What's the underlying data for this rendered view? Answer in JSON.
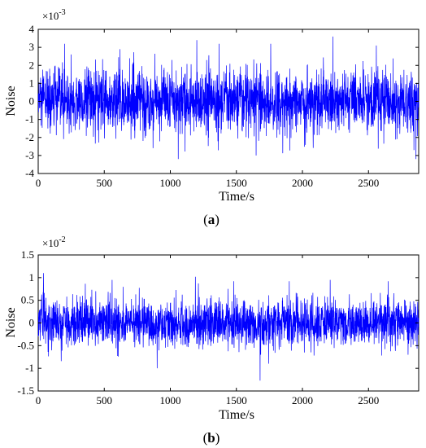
{
  "chart_data": [
    {
      "type": "line",
      "panel": "a",
      "caption_letter": "a",
      "xlabel": "Time/s",
      "ylabel": "Noise",
      "multiplier": "×10",
      "multiplier_exp": "-3",
      "xlim": [
        0,
        2880
      ],
      "ylim": [
        -4,
        4
      ],
      "xticks": [
        0,
        500,
        1000,
        1500,
        2000,
        2500
      ],
      "yticks": [
        4,
        3,
        2,
        1,
        0,
        -1,
        -2,
        -3,
        -4
      ],
      "ytick_labels": [
        "4",
        "3",
        "2",
        "1",
        "0",
        "-1",
        "-2",
        "-3",
        "-4"
      ],
      "grid": false,
      "color": "#0000ff",
      "sigma": 0.9,
      "peaks": [
        [
          200,
          3.2
        ],
        [
          620,
          2.9
        ],
        [
          1060,
          -3.2
        ],
        [
          1200,
          3.4
        ],
        [
          1370,
          3.2
        ],
        [
          1650,
          -3.0
        ],
        [
          1760,
          3.2
        ],
        [
          2230,
          3.6
        ],
        [
          2560,
          3.1
        ],
        [
          2860,
          -3.2
        ]
      ]
    },
    {
      "type": "line",
      "panel": "b",
      "caption_letter": "b",
      "xlabel": "Time/s",
      "ylabel": "Noise",
      "multiplier": "×10",
      "multiplier_exp": "-2",
      "xlim": [
        0,
        2880
      ],
      "ylim": [
        -1.5,
        1.5
      ],
      "xticks": [
        0,
        500,
        1000,
        1500,
        2000,
        2500
      ],
      "yticks": [
        1.5,
        1,
        0.5,
        0,
        -0.5,
        -1,
        -1.5
      ],
      "ytick_labels": [
        "1.5",
        "1",
        "0.5",
        "0",
        "-0.5",
        "-1",
        "-1.5"
      ],
      "grid": false,
      "color": "#0000ff",
      "sigma": 0.26,
      "peaks": [
        [
          40,
          1.1
        ],
        [
          560,
          0.95
        ],
        [
          900,
          -1.0
        ],
        [
          1190,
          1.02
        ],
        [
          1480,
          0.92
        ],
        [
          1680,
          -1.27
        ],
        [
          1900,
          0.92
        ],
        [
          2210,
          0.95
        ],
        [
          2650,
          0.92
        ],
        [
          2800,
          -0.7
        ]
      ]
    }
  ]
}
